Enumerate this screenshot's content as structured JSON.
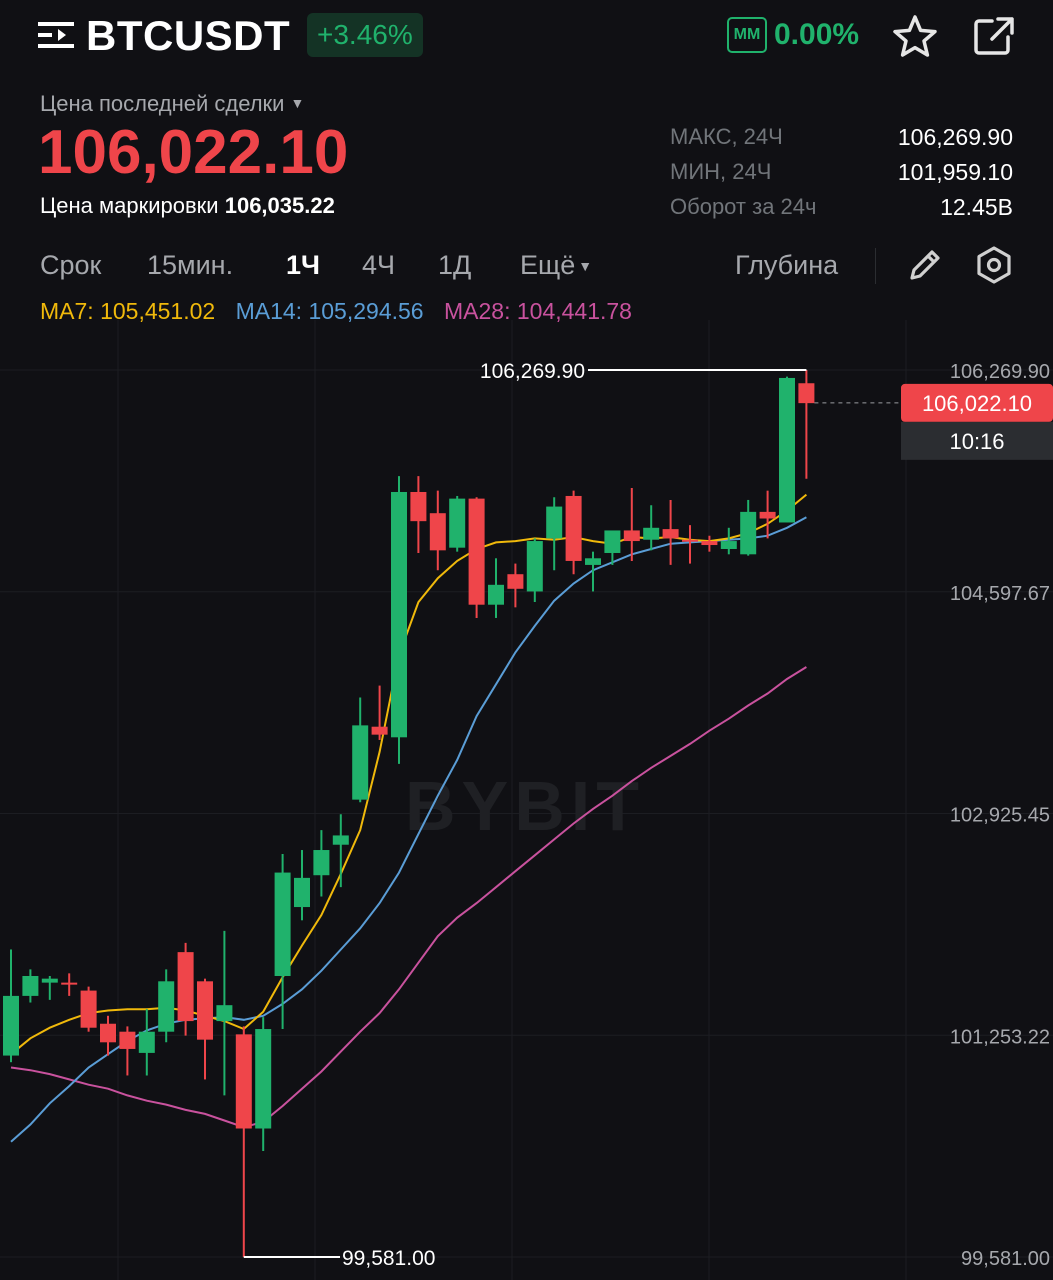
{
  "header": {
    "menu_icon": "menu-icon",
    "symbol": "BTCUSDT",
    "change_pct": "+3.46%",
    "mm_badge": "MM",
    "mm_value": "0.00%",
    "favorite_icon": "star-icon",
    "share_icon": "share-icon"
  },
  "ticker": {
    "price_label": "Цена последней сделки",
    "last_price": "106,022.10",
    "mark_label": "Цена маркировки",
    "mark_price": "106,035.22",
    "stats": [
      {
        "label": "МАКС, 24Ч",
        "value": "106,269.90"
      },
      {
        "label": "МИН, 24Ч",
        "value": "101,959.10"
      },
      {
        "label": "Оборот за 24ч",
        "value": "12.45B"
      }
    ]
  },
  "tabs": {
    "items": [
      "Срок",
      "15мин.",
      "1Ч",
      "4Ч",
      "1Д",
      "Ещё"
    ],
    "active": "1Ч",
    "depth": "Глубина",
    "draw_icon": "pencil-icon",
    "settings_icon": "settings-icon"
  },
  "ma": {
    "ma7_label": "MA7:",
    "ma7_value": "105,451.02",
    "ma7_color": "#f0b90b",
    "ma14_label": "MA14:",
    "ma14_value": "105,294.56",
    "ma14_color": "#5a9dd6",
    "ma28_label": "MA28:",
    "ma28_value": "104,441.78",
    "ma28_color": "#c9529e"
  },
  "colors": {
    "up": "#20b26c",
    "down": "#ef454a",
    "background": "#101014"
  },
  "chart_data": {
    "type": "candlestick",
    "watermark": "BYBIT",
    "y_ticks": [
      "106,269.90",
      "104,597.67",
      "102,925.45",
      "101,253.22",
      "99,581.00"
    ],
    "ylim": [
      99581.0,
      106269.9
    ],
    "high_marker": "106,269.90",
    "low_marker": "99,581.00",
    "current_price_tag": "106,022.10",
    "countdown": "10:16",
    "candles": [
      [
        101100,
        101550,
        101050,
        101900
      ],
      [
        101550,
        101700,
        101500,
        101750
      ],
      [
        101650,
        101680,
        101520,
        101700
      ],
      [
        101650,
        101640,
        101550,
        101720
      ],
      [
        101590,
        101310,
        101280,
        101620
      ],
      [
        101340,
        101200,
        101100,
        101400
      ],
      [
        101280,
        101150,
        100950,
        101320
      ],
      [
        101120,
        101280,
        100950,
        101450
      ],
      [
        101280,
        101660,
        101200,
        101750
      ],
      [
        101880,
        101360,
        101250,
        101950
      ],
      [
        101660,
        101220,
        100920,
        101680
      ],
      [
        101360,
        101480,
        100800,
        102040
      ],
      [
        101260,
        100550,
        99580,
        101320
      ],
      [
        100550,
        101300,
        100380,
        101390
      ],
      [
        101700,
        102480,
        101300,
        102620
      ],
      [
        102220,
        102440,
        102120,
        102650
      ],
      [
        102460,
        102650,
        102300,
        102800
      ],
      [
        102690,
        102760,
        102370,
        102920
      ],
      [
        103030,
        103590,
        103010,
        103800
      ],
      [
        103580,
        103520,
        103480,
        103890
      ],
      [
        103500,
        105350,
        103300,
        105470
      ],
      [
        105350,
        105130,
        104890,
        105470
      ],
      [
        105190,
        104910,
        104760,
        105360
      ],
      [
        104930,
        105300,
        104900,
        105320
      ],
      [
        105300,
        104500,
        104400,
        105310
      ],
      [
        104500,
        104650,
        104400,
        104850
      ],
      [
        104730,
        104620,
        104480,
        104810
      ],
      [
        104600,
        104980,
        104520,
        105000
      ],
      [
        105000,
        105240,
        104760,
        105310
      ],
      [
        105320,
        104830,
        104730,
        105360
      ],
      [
        104800,
        104850,
        104600,
        104900
      ],
      [
        104890,
        105060,
        104800,
        105040
      ],
      [
        105060,
        104980,
        104830,
        105380
      ],
      [
        104990,
        105080,
        104910,
        105250
      ],
      [
        105070,
        105000,
        104800,
        105290
      ],
      [
        104990,
        104980,
        104810,
        105100
      ],
      [
        104980,
        104950,
        104900,
        105020
      ],
      [
        104920,
        104980,
        104880,
        105080
      ],
      [
        104880,
        105200,
        104870,
        105290
      ],
      [
        105200,
        105150,
        105000,
        105360
      ],
      [
        105120,
        106210,
        105120,
        106220
      ],
      [
        106170,
        106020,
        105450,
        106270
      ]
    ],
    "ma7": [
      101110,
      101230,
      101310,
      101370,
      101420,
      101440,
      101450,
      101450,
      101460,
      101440,
      101400,
      101360,
      101300,
      101430,
      101690,
      101930,
      102160,
      102470,
      102800,
      103390,
      104120,
      104520,
      104700,
      104830,
      104920,
      104970,
      104980,
      105000,
      104990,
      105010,
      104980,
      104960,
      105010,
      105000,
      105010,
      104990,
      104980,
      105000,
      105040,
      105110,
      105210,
      105330
    ],
    "ma14": [
      100450,
      100580,
      100740,
      100870,
      101010,
      101110,
      101210,
      101290,
      101340,
      101370,
      101380,
      101390,
      101370,
      101400,
      101490,
      101600,
      101740,
      101900,
      102060,
      102250,
      102480,
      102770,
      103060,
      103330,
      103660,
      103900,
      104140,
      104340,
      104530,
      104660,
      104760,
      104820,
      104880,
      104920,
      104960,
      104970,
      104980,
      104990,
      105000,
      105020,
      105080,
      105160
    ],
    "ma28": [
      101010,
      100990,
      100960,
      100920,
      100880,
      100850,
      100800,
      100760,
      100730,
      100690,
      100660,
      100610,
      100560,
      100600,
      100720,
      100850,
      100980,
      101130,
      101280,
      101420,
      101600,
      101800,
      102000,
      102140,
      102250,
      102370,
      102490,
      102610,
      102730,
      102850,
      102960,
      103060,
      103170,
      103270,
      103360,
      103450,
      103550,
      103640,
      103740,
      103830,
      103940,
      104030
    ]
  }
}
